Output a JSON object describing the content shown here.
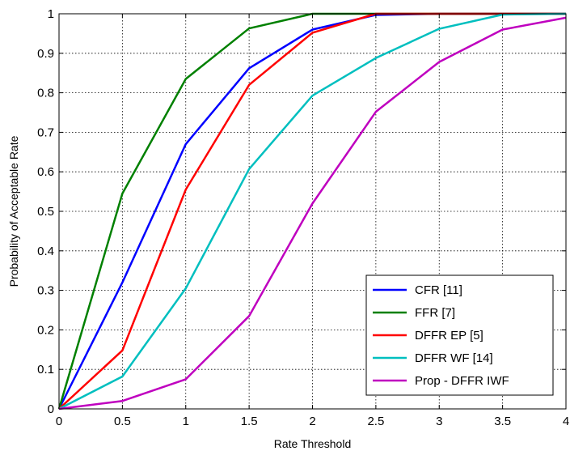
{
  "chart_data": {
    "type": "line",
    "title": "",
    "xlabel": "Rate Threshold",
    "ylabel": "Probability of Acceptable Rate",
    "xlim": [
      0,
      4
    ],
    "ylim": [
      0,
      1
    ],
    "grid": true,
    "legend_position": "bottom-right",
    "x": [
      0,
      0.5,
      1,
      1.5,
      2,
      2.5,
      3,
      3.5,
      4
    ],
    "x_ticks": [
      "0",
      "0.5",
      "1",
      "1.5",
      "2",
      "2.5",
      "3",
      "3.5",
      "4"
    ],
    "y_ticks": [
      "0",
      "0.1",
      "0.2",
      "0.3",
      "0.4",
      "0.5",
      "0.6",
      "0.7",
      "0.8",
      "0.9",
      "1"
    ],
    "series": [
      {
        "name": "CFR [11]",
        "color": "#0000ff",
        "values": [
          0,
          0.32,
          0.67,
          0.862,
          0.96,
          0.997,
          1,
          1,
          1
        ]
      },
      {
        "name": "FFR [7]",
        "color": "#008000",
        "values": [
          0,
          0.545,
          0.835,
          0.963,
          1,
          1,
          1,
          1,
          1
        ]
      },
      {
        "name": "DFFR EP [5]",
        "color": "#ff0000",
        "values": [
          0,
          0.148,
          0.555,
          0.82,
          0.952,
          1,
          1,
          1,
          1
        ]
      },
      {
        "name": "DFFR WF [14]",
        "color": "#00bfbf",
        "values": [
          0,
          0.082,
          0.305,
          0.607,
          0.793,
          0.888,
          0.962,
          0.998,
          1
        ]
      },
      {
        "name": "Prop - DFFR IWF",
        "color": "#bf00bf",
        "values": [
          0,
          0.02,
          0.075,
          0.235,
          0.52,
          0.752,
          0.878,
          0.96,
          0.99
        ]
      }
    ]
  }
}
